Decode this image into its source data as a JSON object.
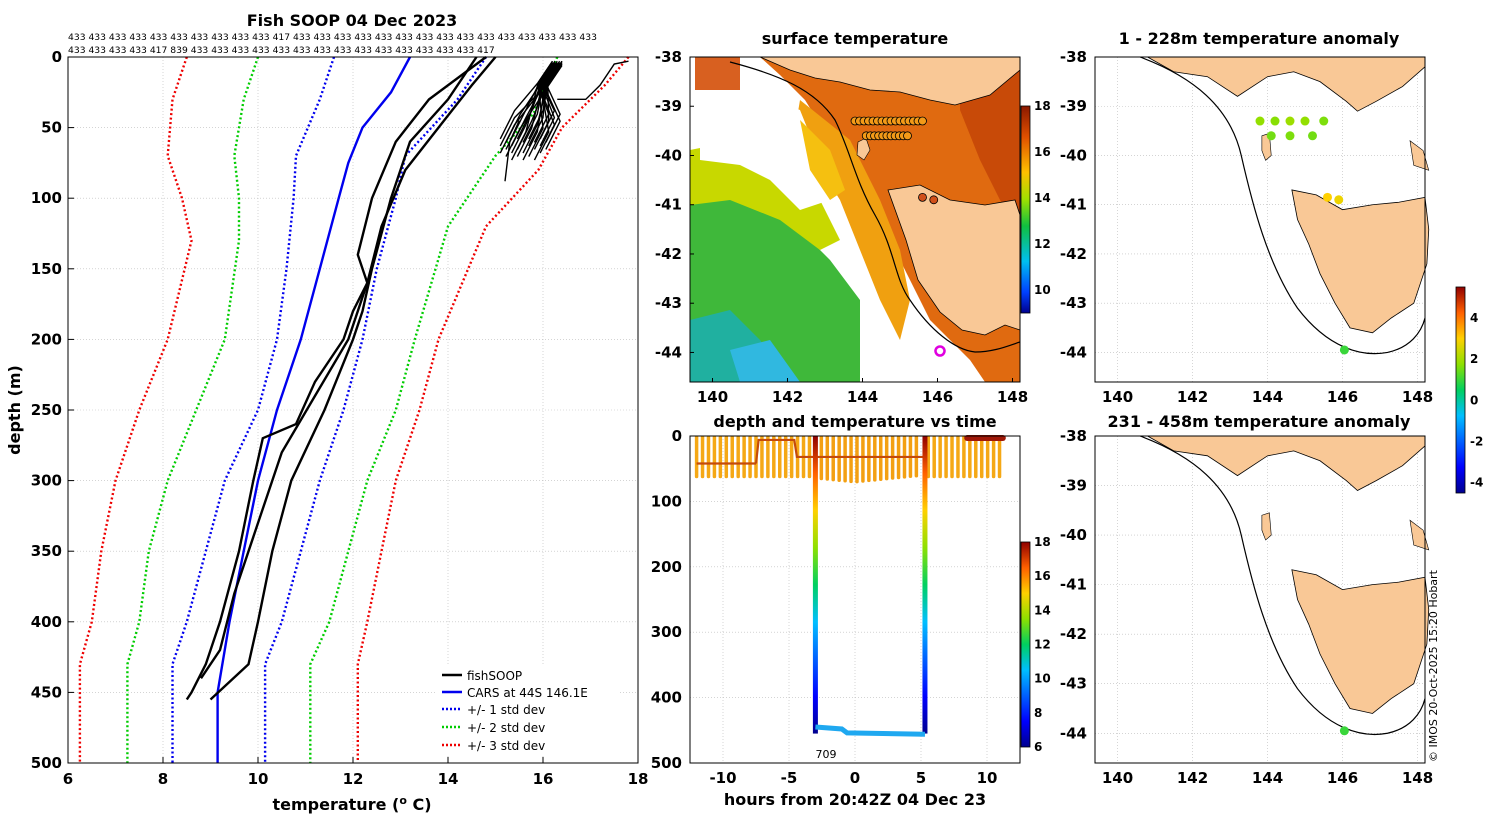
{
  "chart_data": [
    {
      "type": "line",
      "id": "profile",
      "title": "Fish SOOP 04 Dec 2023",
      "count_row1": "433 433 433 433 433 433 433 433 433 433 417 433 433 433 433 433 433 433 433 433 433 433 433 433 433 433",
      "count_row2": "433 433 433 433 417 839 433 433 433 433 433 433 433 433 433 433 433 433 433 433 417",
      "xlabel": "temperature (",
      "xlabel_sup": "o",
      "xlabel_unit": " C)",
      "ylabel": "depth (m)",
      "xlim": [
        6,
        18
      ],
      "ylim": [
        0,
        500
      ],
      "xticks": [
        "6",
        "8",
        "10",
        "12",
        "14",
        "16",
        "18"
      ],
      "yticks": [
        "0",
        "50",
        "100",
        "150",
        "200",
        "250",
        "300",
        "350",
        "400",
        "450",
        "500"
      ],
      "legend": {
        "position": "bottom-right",
        "entries": [
          "fishSOOP",
          "CARS at 44S 146.1E",
          "+/- 1 std dev",
          "+/- 2 std dev",
          "+/- 3 std dev"
        ]
      },
      "series": [
        {
          "name": "CARS mean",
          "color": "#0000ee",
          "style": "solid",
          "depth": [
            0,
            25,
            50,
            75,
            100,
            150,
            200,
            250,
            300,
            350,
            400,
            450,
            500
          ],
          "temp": [
            13.2,
            12.8,
            12.2,
            11.9,
            11.7,
            11.3,
            10.9,
            10.4,
            10.0,
            9.7,
            9.4,
            9.15,
            9.15
          ]
        },
        {
          "name": "+1 sd",
          "color": "#0000ee",
          "style": "dotted",
          "depth": [
            0,
            30,
            70,
            100,
            150,
            200,
            250,
            300,
            350,
            400,
            430,
            500
          ],
          "temp": [
            11.6,
            11.3,
            10.8,
            10.75,
            10.6,
            10.4,
            10.0,
            9.3,
            8.9,
            8.5,
            8.2,
            8.2
          ]
        },
        {
          "name": "-1 sd",
          "color": "#0000ee",
          "style": "dotted",
          "depth": [
            0,
            30,
            70,
            100,
            150,
            200,
            250,
            300,
            350,
            400,
            430,
            500
          ],
          "temp": [
            14.8,
            14.2,
            13.1,
            12.9,
            12.5,
            12.2,
            11.8,
            11.3,
            10.9,
            10.5,
            10.15,
            10.15
          ]
        },
        {
          "name": "+2 sd",
          "color": "#00cc00",
          "style": "dotted",
          "depth": [
            0,
            30,
            70,
            100,
            130,
            200,
            250,
            300,
            350,
            400,
            430,
            500
          ],
          "temp": [
            10.0,
            9.7,
            9.5,
            9.6,
            9.6,
            9.3,
            8.7,
            8.1,
            7.7,
            7.5,
            7.25,
            7.25
          ]
        },
        {
          "name": "-2 sd",
          "color": "#00cc00",
          "style": "dotted",
          "depth": [
            0,
            40,
            70,
            120,
            200,
            250,
            300,
            350,
            400,
            430,
            500
          ],
          "temp": [
            16.3,
            15.8,
            15.0,
            14.0,
            13.3,
            12.9,
            12.3,
            11.9,
            11.5,
            11.1,
            11.1
          ]
        },
        {
          "name": "+3 sd",
          "color": "#ee0000",
          "style": "dotted",
          "depth": [
            0,
            30,
            70,
            100,
            130,
            200,
            250,
            300,
            350,
            400,
            430,
            500
          ],
          "temp": [
            8.5,
            8.2,
            8.1,
            8.4,
            8.6,
            8.1,
            7.5,
            7.0,
            6.7,
            6.5,
            6.25,
            6.25
          ]
        },
        {
          "name": "-3 sd",
          "color": "#ee0000",
          "style": "dotted",
          "depth": [
            0,
            20,
            50,
            80,
            120,
            200,
            250,
            300,
            350,
            400,
            430,
            500
          ],
          "temp": [
            17.8,
            17.3,
            16.4,
            15.9,
            14.8,
            13.8,
            13.4,
            12.9,
            12.6,
            12.3,
            12.1,
            12.1
          ]
        },
        {
          "name": "fishSOOP A",
          "color": "#000000",
          "style": "solid",
          "depth": [
            0,
            30,
            60,
            100,
            140,
            160,
            180,
            200,
            230,
            260,
            270,
            300,
            350,
            400,
            430,
            450,
            455
          ],
          "temp": [
            14.8,
            13.6,
            12.9,
            12.4,
            12.1,
            12.3,
            12.0,
            11.8,
            11.2,
            10.8,
            10.1,
            9.9,
            9.6,
            9.2,
            8.9,
            8.6,
            8.5
          ]
        },
        {
          "name": "fishSOOP B",
          "color": "#000000",
          "style": "solid",
          "depth": [
            0,
            30,
            60,
            100,
            150,
            180,
            200,
            250,
            300,
            350,
            400,
            430,
            455
          ],
          "temp": [
            14.6,
            14.0,
            13.2,
            12.8,
            12.4,
            12.2,
            12.0,
            11.4,
            10.7,
            10.3,
            10.0,
            9.8,
            9.0
          ]
        },
        {
          "name": "fishSOOP C",
          "color": "#000000",
          "style": "solid",
          "depth": [
            0,
            20,
            50,
            80,
            120,
            160,
            200,
            240,
            280,
            330,
            380,
            420,
            440
          ],
          "temp": [
            15.0,
            14.5,
            13.8,
            13.1,
            12.6,
            12.3,
            11.9,
            11.2,
            10.5,
            10.0,
            9.5,
            9.2,
            8.8
          ]
        }
      ]
    },
    {
      "type": "heatmap",
      "id": "surface_map",
      "title": "surface temperature",
      "xlim": [
        139.4,
        148.2
      ],
      "ylim": [
        -44.6,
        -38
      ],
      "xticks": [
        "140",
        "142",
        "144",
        "146",
        "148"
      ],
      "yticks": [
        "-38",
        "-39",
        "-40",
        "-41",
        "-42",
        "-43",
        "-44"
      ],
      "colorbar": {
        "range": [
          9,
          18
        ],
        "ticks": [
          "10",
          "12",
          "14",
          "16",
          "18"
        ]
      },
      "track_rows": [
        {
          "lat": -39.3,
          "lon_start": 143.8,
          "lon_end": 145.6,
          "n": 16
        },
        {
          "lat": -39.6,
          "lon_start": 144.1,
          "lon_end": 145.2,
          "n": 11
        }
      ],
      "markers": [
        {
          "lon": 146.05,
          "lat": -43.95,
          "style": "magenta-circle"
        }
      ]
    },
    {
      "type": "scatter",
      "id": "depth_time",
      "title": "depth and temperature vs time",
      "xlabel": "hours from 20:42Z 04 Dec 23",
      "xlim": [
        -12.5,
        12.5
      ],
      "ylim": [
        0,
        500
      ],
      "xticks": [
        "-10",
        "-5",
        "0",
        "5",
        "10"
      ],
      "yticks": [
        "0",
        "100",
        "200",
        "300",
        "400",
        "500"
      ],
      "annotation": "709",
      "colorbar": {
        "range": [
          6,
          18
        ],
        "ticks": [
          "6",
          "8",
          "10",
          "12",
          "14",
          "16",
          "18"
        ]
      },
      "deep_cast": {
        "start_hour": -3.0,
        "end_hour": 5.3,
        "bottom_depth": 455
      }
    },
    {
      "type": "scatter",
      "id": "anom_shallow",
      "title": "1 - 228m temperature anomaly",
      "xlim": [
        139.4,
        148.2
      ],
      "ylim": [
        -44.6,
        -38
      ],
      "xticks": [
        "140",
        "142",
        "144",
        "146",
        "148"
      ],
      "yticks": [
        "-38",
        "-39",
        "-40",
        "-41",
        "-42",
        "-43",
        "-44"
      ],
      "points": [
        {
          "lon": 143.8,
          "lat": -39.3,
          "anomaly": 1.8
        },
        {
          "lon": 144.2,
          "lat": -39.3,
          "anomaly": 1.7
        },
        {
          "lon": 144.6,
          "lat": -39.3,
          "anomaly": 1.9
        },
        {
          "lon": 145.0,
          "lat": -39.3,
          "anomaly": 1.8
        },
        {
          "lon": 145.5,
          "lat": -39.3,
          "anomaly": 1.6
        },
        {
          "lon": 144.1,
          "lat": -39.6,
          "anomaly": 1.5
        },
        {
          "lon": 144.6,
          "lat": -39.6,
          "anomaly": 1.6
        },
        {
          "lon": 145.2,
          "lat": -39.6,
          "anomaly": 1.5
        },
        {
          "lon": 145.6,
          "lat": -40.85,
          "anomaly": 3.0
        },
        {
          "lon": 145.9,
          "lat": -40.9,
          "anomaly": 2.8
        },
        {
          "lon": 146.05,
          "lat": -43.95,
          "anomaly": 1.0
        }
      ]
    },
    {
      "type": "scatter",
      "id": "anom_deep",
      "title": "231 - 458m temperature anomaly",
      "xlim": [
        139.4,
        148.2
      ],
      "ylim": [
        -44.6,
        -38
      ],
      "xticks": [
        "140",
        "142",
        "144",
        "146",
        "148"
      ],
      "yticks": [
        "-38",
        "-39",
        "-40",
        "-41",
        "-42",
        "-43",
        "-44"
      ],
      "points": [
        {
          "lon": 146.05,
          "lat": -43.95,
          "anomaly": 1.0
        }
      ]
    }
  ],
  "shared_colorbar": {
    "range": [
      -4.5,
      5.5
    ],
    "ticks": [
      "-4",
      "-2",
      "0",
      "2",
      "4"
    ]
  },
  "credit": "© IMOS 20-Oct-2025 15:20 Hobart",
  "colors": {
    "land": "#f9c896",
    "profile_black": "#000000",
    "cars_blue": "#0000ee",
    "marker_magenta": "#e000e0"
  }
}
